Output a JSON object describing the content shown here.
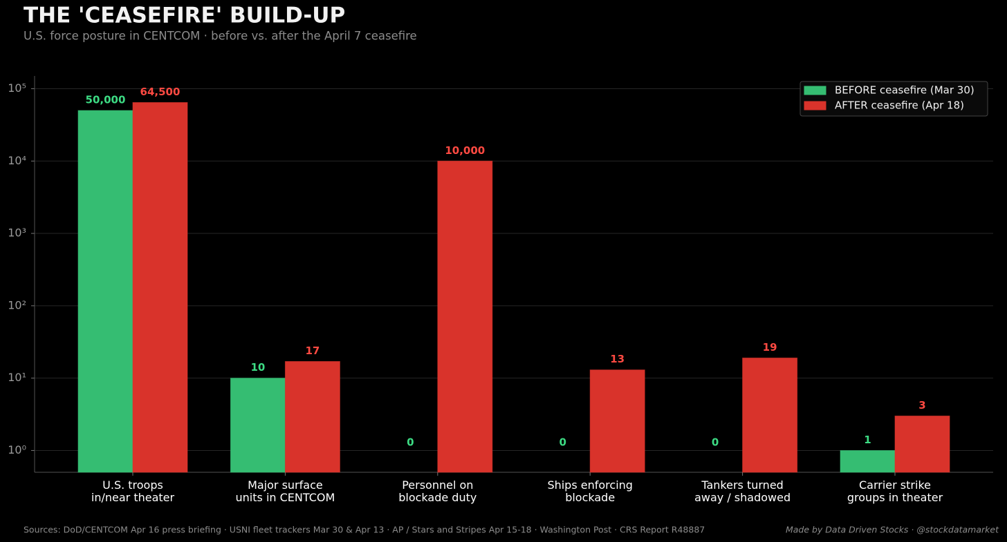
{
  "chart_data": {
    "type": "bar",
    "title": "THE 'CEASEFIRE' BUILD-UP",
    "subtitle": "U.S. force posture in CENTCOM  ·  before vs. after the April 7 ceasefire",
    "categories": [
      "U.S. troops\nin/near theater",
      "Major surface\nunits in CENTCOM",
      "Personnel on\nblockade duty",
      "Ships enforcing\nblockade",
      "Tankers turned\naway / shadowed",
      "Carrier strike\ngroups in theater"
    ],
    "series": [
      {
        "name": "BEFORE ceasefire  (Mar 30)",
        "color": "#35bd72",
        "label_color": "#3ddc84",
        "values": [
          50000,
          10,
          0,
          0,
          0,
          1
        ],
        "value_labels": [
          "50,000",
          "10",
          "0",
          "0",
          "0",
          "1"
        ]
      },
      {
        "name": "AFTER ceasefire  (Apr 18)",
        "color": "#d9332b",
        "label_color": "#ff4a42",
        "values": [
          64500,
          17,
          10000,
          13,
          19,
          3
        ],
        "value_labels": [
          "64,500",
          "17",
          "10,000",
          "13",
          "19",
          "3"
        ]
      }
    ],
    "log_scale": true,
    "ylim": [
      0.5,
      150000
    ],
    "yticks": [
      {
        "value": 1,
        "label": "10⁰"
      },
      {
        "value": 10,
        "label": "10¹"
      },
      {
        "value": 100,
        "label": "10²"
      },
      {
        "value": 1000,
        "label": "10³"
      },
      {
        "value": 10000,
        "label": "10⁴"
      },
      {
        "value": 100000,
        "label": "10⁵"
      }
    ],
    "grid": true,
    "legend": "upper right",
    "footer_left": "Sources: DoD/CENTCOM Apr 16 press briefing  ·  USNI fleet trackers Mar 30 & Apr 13  ·  AP / Stars and Stripes Apr 15-18  ·  Washington Post  ·  CRS Report R48887",
    "footer_right": "Made by Data Driven Stocks  ·  @stockdatamarket"
  }
}
